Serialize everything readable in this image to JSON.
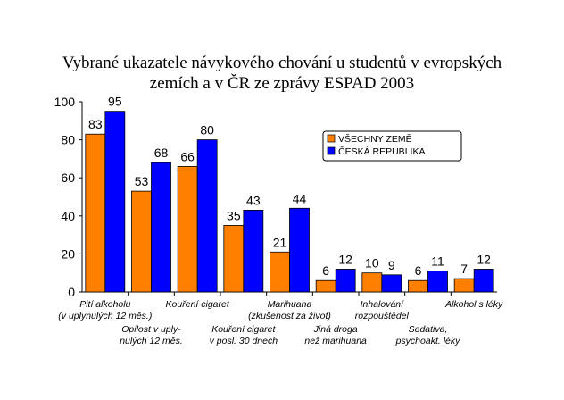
{
  "chart_data": {
    "type": "bar",
    "title": [
      "Vybrané ukazatele návykového chování u studentů v evropských",
      "zemích a v ČR ze zprávy ESPAD 2003"
    ],
    "ylim": [
      0,
      100
    ],
    "yticks": [
      0,
      20,
      40,
      60,
      80,
      100
    ],
    "categories": [
      [
        "Pití alkoholu",
        "(v uplynulých 12 měs.)"
      ],
      [
        "Opilost v uply-",
        "nulých 12 měs."
      ],
      [
        "Kouření cigaret"
      ],
      [
        "Kouření cigaret",
        "v posl. 30 dnech"
      ],
      [
        "Marihuana",
        "(zkušenost za život)"
      ],
      [
        "Jiná droga",
        "než marihuana"
      ],
      [
        "Inhalování",
        "rozpouštědel"
      ],
      [
        "Sedativa,",
        "psychoakt. léky"
      ],
      [
        "Alkohol s léky"
      ]
    ],
    "series": [
      {
        "name": "VŠECHNY ZEMĚ",
        "color": "#ff8000",
        "values": [
          83,
          53,
          66,
          35,
          21,
          6,
          10,
          6,
          7
        ]
      },
      {
        "name": "ČESKÁ REPUBLIKA",
        "color": "#0000ff",
        "values": [
          95,
          68,
          80,
          43,
          44,
          12,
          9,
          11,
          12
        ]
      }
    ],
    "grid": false,
    "legend_position": "top-right"
  }
}
